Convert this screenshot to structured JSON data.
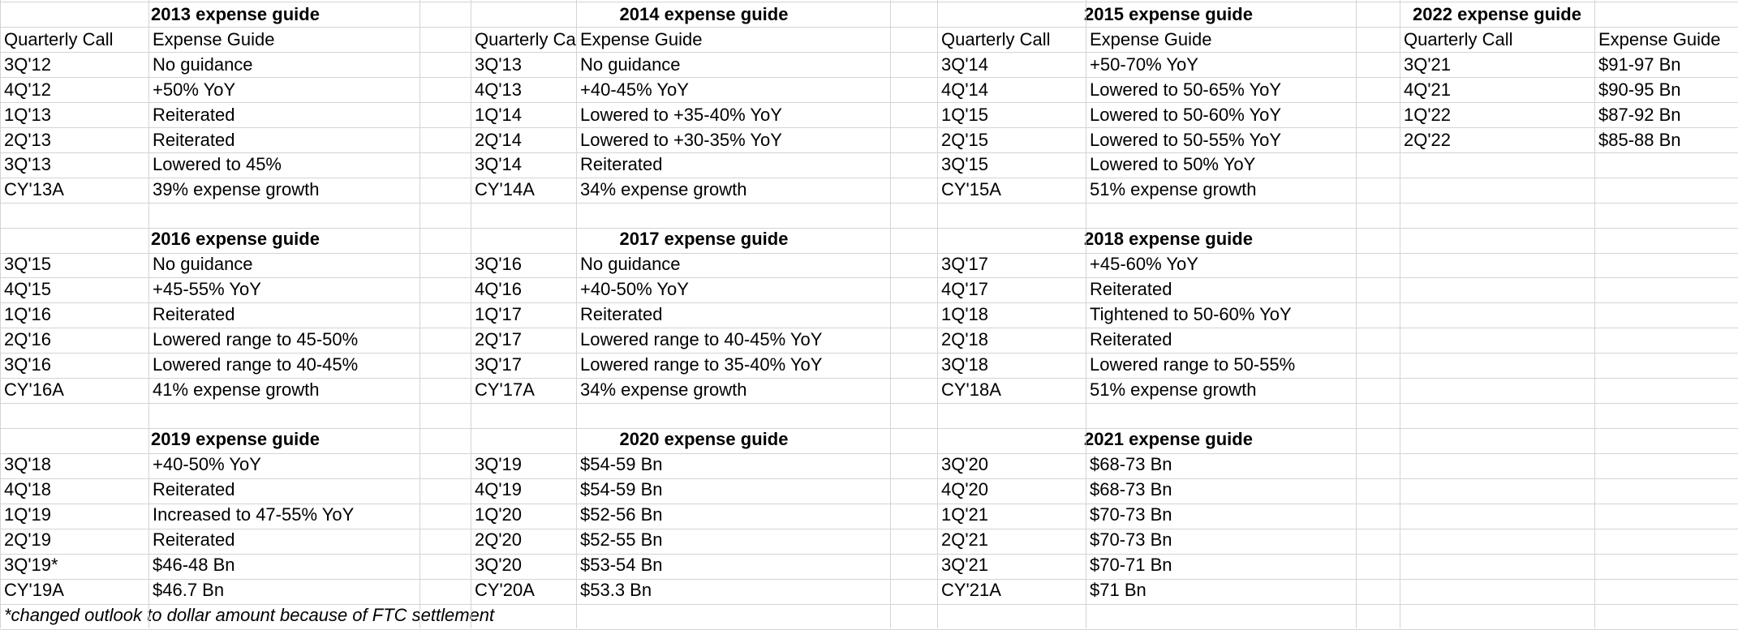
{
  "blocks": [
    {
      "title": "2013 expense guide",
      "headers": [
        "Quarterly Call",
        "Expense Guide"
      ],
      "rows": [
        [
          "3Q'12",
          "No guidance"
        ],
        [
          "4Q'12",
          "+50% YoY"
        ],
        [
          "1Q'13",
          "Reiterated"
        ],
        [
          "2Q'13",
          "Reiterated"
        ],
        [
          "3Q'13",
          "Lowered to 45%"
        ],
        [
          "CY'13A",
          "39% expense growth"
        ]
      ]
    },
    {
      "title": "2014 expense guide",
      "headers": [
        "Quarterly Call",
        "Expense Guide"
      ],
      "rows": [
        [
          "3Q'13",
          "No guidance"
        ],
        [
          "4Q'13",
          "+40-45% YoY"
        ],
        [
          "1Q'14",
          "Lowered to +35-40% YoY"
        ],
        [
          "2Q'14",
          "Lowered to +30-35% YoY"
        ],
        [
          "3Q'14",
          "Reiterated"
        ],
        [
          "CY'14A",
          "34% expense growth"
        ]
      ]
    },
    {
      "title": "2015 expense guide",
      "headers": [
        "Quarterly Call",
        "Expense Guide"
      ],
      "rows": [
        [
          "3Q'14",
          "+50-70% YoY"
        ],
        [
          "4Q'14",
          "Lowered to 50-65% YoY"
        ],
        [
          "1Q'15",
          "Lowered to 50-60% YoY"
        ],
        [
          "2Q'15",
          "Lowered to 50-55% YoY"
        ],
        [
          "3Q'15",
          "Lowered to 50% YoY"
        ],
        [
          "CY'15A",
          "51% expense growth"
        ]
      ]
    },
    {
      "title": "2022 expense guide",
      "headers": [
        "Quarterly Call",
        "Expense Guide"
      ],
      "rows": [
        [
          "3Q'21",
          "$91-97 Bn"
        ],
        [
          "4Q'21",
          "$90-95 Bn"
        ],
        [
          "1Q'22",
          "$87-92 Bn"
        ],
        [
          "2Q'22",
          "$85-88 Bn"
        ]
      ]
    },
    {
      "title": "2016 expense guide",
      "headers": [],
      "rows": [
        [
          "3Q'15",
          "No guidance"
        ],
        [
          "4Q'15",
          "+45-55% YoY"
        ],
        [
          "1Q'16",
          "Reiterated"
        ],
        [
          "2Q'16",
          "Lowered range to 45-50%"
        ],
        [
          "3Q'16",
          "Lowered range to 40-45%"
        ],
        [
          "CY'16A",
          "41% expense growth"
        ]
      ]
    },
    {
      "title": "2017 expense guide",
      "headers": [],
      "rows": [
        [
          "3Q'16",
          "No guidance"
        ],
        [
          "4Q'16",
          "+40-50% YoY"
        ],
        [
          "1Q'17",
          "Reiterated"
        ],
        [
          "2Q'17",
          "Lowered range to 40-45% YoY"
        ],
        [
          "3Q'17",
          "Lowered range to 35-40% YoY"
        ],
        [
          "CY'17A",
          "34% expense growth"
        ]
      ]
    },
    {
      "title": "2018 expense guide",
      "headers": [],
      "rows": [
        [
          "3Q'17",
          "+45-60% YoY"
        ],
        [
          "4Q'17",
          "Reiterated"
        ],
        [
          "1Q'18",
          "Tightened to 50-60% YoY"
        ],
        [
          "2Q'18",
          "Reiterated"
        ],
        [
          "3Q'18",
          "Lowered range to 50-55%"
        ],
        [
          "CY'18A",
          "51% expense growth"
        ]
      ]
    },
    {
      "title": "2019 expense guide",
      "headers": [],
      "rows": [
        [
          "3Q'18",
          "+40-50% YoY"
        ],
        [
          "4Q'18",
          "Reiterated"
        ],
        [
          "1Q'19",
          "Increased to 47-55% YoY"
        ],
        [
          "2Q'19",
          "Reiterated"
        ],
        [
          "3Q'19*",
          "$46-48 Bn"
        ],
        [
          "CY'19A",
          "$46.7 Bn"
        ]
      ]
    },
    {
      "title": "2020 expense guide",
      "headers": [],
      "rows": [
        [
          "3Q'19",
          "$54-59 Bn"
        ],
        [
          "4Q'19",
          "$54-59 Bn"
        ],
        [
          "1Q'20",
          "$52-56 Bn"
        ],
        [
          "2Q'20",
          "$52-55 Bn"
        ],
        [
          "3Q'20",
          "$53-54 Bn"
        ],
        [
          "CY'20A",
          "$53.3 Bn"
        ]
      ]
    },
    {
      "title": "2021 expense guide",
      "headers": [],
      "rows": [
        [
          "3Q'20",
          "$68-73 Bn"
        ],
        [
          "4Q'20",
          "$68-73 Bn"
        ],
        [
          "1Q'21",
          "$70-73 Bn"
        ],
        [
          "2Q'21",
          "$70-73 Bn"
        ],
        [
          "3Q'21",
          "$70-71 Bn"
        ],
        [
          "CY'21A",
          "$71 Bn"
        ]
      ]
    }
  ],
  "footnote": "*changed outlook to dollar amount because of FTC settlement"
}
